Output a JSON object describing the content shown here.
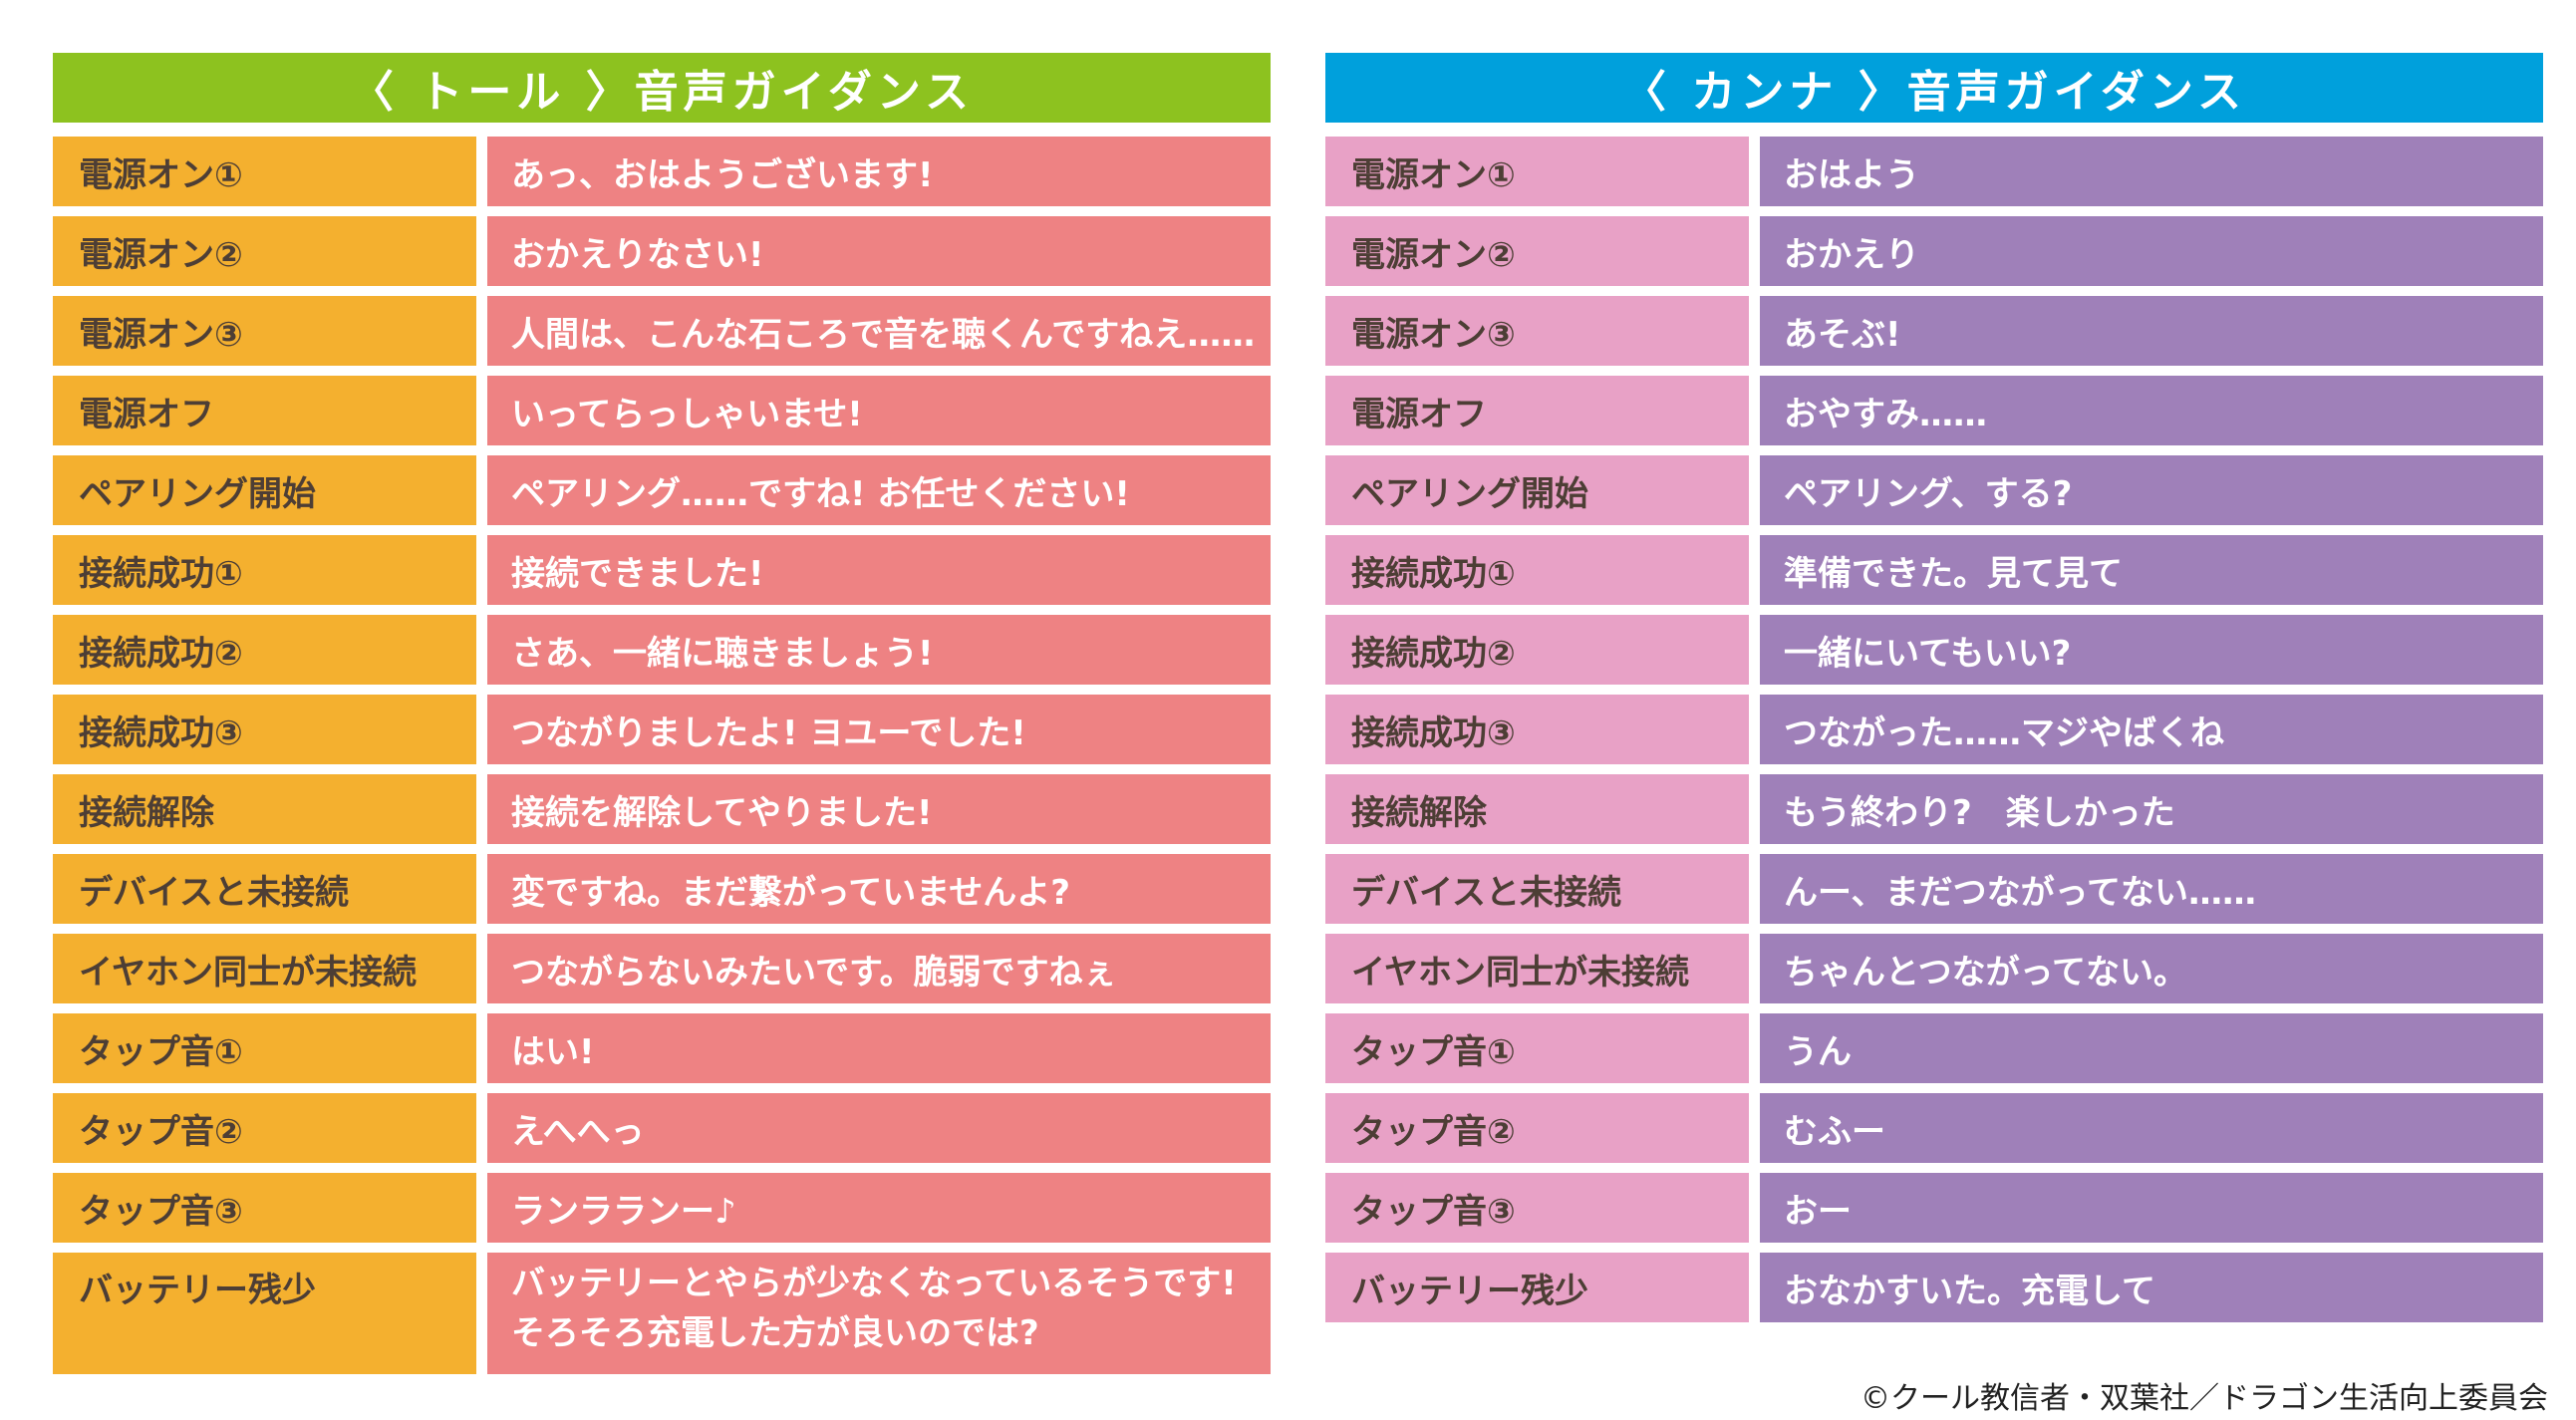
{
  "tohru": {
    "title": "〈 トール 〉音声ガイダンス",
    "rows": [
      {
        "label": "電源オン①",
        "text": "あっ、おはようございます!"
      },
      {
        "label": "電源オン②",
        "text": "おかえりなさい!"
      },
      {
        "label": "電源オン③",
        "text": "人間は、こんな石ころで音を聴くんですねえ……"
      },
      {
        "label": "電源オフ",
        "text": "いってらっしゃいませ!"
      },
      {
        "label": "ペアリング開始",
        "text": "ペアリング……ですね! お任せください!"
      },
      {
        "label": "接続成功①",
        "text": "接続できました!"
      },
      {
        "label": "接続成功②",
        "text": "さあ、一緒に聴きましょう!"
      },
      {
        "label": "接続成功③",
        "text": "つながりましたよ! ヨユーでした!"
      },
      {
        "label": "接続解除",
        "text": "接続を解除してやりました!"
      },
      {
        "label": "デバイスと未接続",
        "text": "変ですね。まだ繋がっていませんよ?"
      },
      {
        "label": "イヤホン同士が未接続",
        "text": "つながらないみたいです。脆弱ですねぇ"
      },
      {
        "label": "タップ音①",
        "text": "はい!"
      },
      {
        "label": "タップ音②",
        "text": "えへへっ"
      },
      {
        "label": "タップ音③",
        "text": "ランラランー♪"
      },
      {
        "label": "バッテリー残少",
        "text": "バッテリーとやらが少なくなっているそうです!\nそろそろ充電した方が良いのでは?"
      }
    ]
  },
  "kanna": {
    "title": "〈 カンナ 〉音声ガイダンス",
    "rows": [
      {
        "label": "電源オン①",
        "text": "おはよう"
      },
      {
        "label": "電源オン②",
        "text": "おかえり"
      },
      {
        "label": "電源オン③",
        "text": "あそぶ!"
      },
      {
        "label": "電源オフ",
        "text": "おやすみ……"
      },
      {
        "label": "ペアリング開始",
        "text": "ペアリング、する?"
      },
      {
        "label": "接続成功①",
        "text": "準備できた。見て見て"
      },
      {
        "label": "接続成功②",
        "text": "一緒にいてもいい?"
      },
      {
        "label": "接続成功③",
        "text": "つながった……マジやばくね"
      },
      {
        "label": "接続解除",
        "text": "もう終わり?　楽しかった"
      },
      {
        "label": "デバイスと未接続",
        "text": "んー、まだつながってない……"
      },
      {
        "label": "イヤホン同士が未接続",
        "text": "ちゃんとつながってない。"
      },
      {
        "label": "タップ音①",
        "text": "うん"
      },
      {
        "label": "タップ音②",
        "text": "むふー"
      },
      {
        "label": "タップ音③",
        "text": "おー"
      },
      {
        "label": "バッテリー残少",
        "text": "おなかすいた。充電して"
      }
    ]
  },
  "copyright": "©クール教信者・双葉社／ドラゴン生活向上委員会",
  "colors": {
    "tohru_header": "#8dc21f",
    "tohru_label": "#f4b02f",
    "tohru_text": "#ee8283",
    "kanna_header": "#00a0dc",
    "kanna_label": "#e8a1c6",
    "kanna_text": "#9f80b9"
  }
}
